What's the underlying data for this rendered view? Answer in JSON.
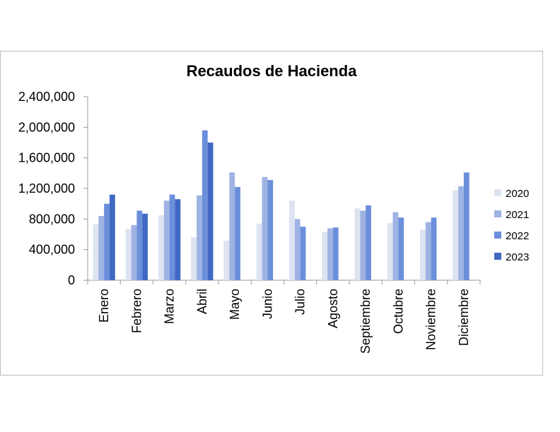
{
  "chart_data": {
    "type": "bar",
    "title": "Recaudos de Hacienda",
    "xlabel": "",
    "ylabel": "",
    "ylim": [
      0,
      2400000
    ],
    "yticks": [
      "0",
      "400,000",
      "800,000",
      "1,200,000",
      "1,600,000",
      "2,000,000",
      "2,400,000"
    ],
    "grid": false,
    "legend_position": "right",
    "categories": [
      "Enero",
      "Febrero",
      "Marzo",
      "Abril",
      "Mayo",
      "Junio",
      "Julio",
      "Agosto",
      "Septiembre",
      "Octubre",
      "Noviembre",
      "Diciembre"
    ],
    "series": [
      {
        "name": "2020",
        "color": "#dde3f1",
        "values": [
          730000,
          670000,
          850000,
          560000,
          520000,
          740000,
          1040000,
          630000,
          940000,
          750000,
          660000,
          1180000
        ]
      },
      {
        "name": "2021",
        "color": "#9fb3e3",
        "values": [
          840000,
          720000,
          1040000,
          1110000,
          1410000,
          1350000,
          800000,
          680000,
          910000,
          890000,
          760000,
          1230000
        ]
      },
      {
        "name": "2022",
        "color": "#6b8fdb",
        "values": [
          1000000,
          910000,
          1120000,
          1960000,
          1220000,
          1310000,
          700000,
          690000,
          980000,
          820000,
          820000,
          1410000
        ]
      },
      {
        "name": "2023",
        "color": "#4169c3",
        "values": [
          1120000,
          870000,
          1060000,
          1800000,
          null,
          null,
          null,
          null,
          null,
          null,
          null,
          null
        ]
      }
    ]
  }
}
